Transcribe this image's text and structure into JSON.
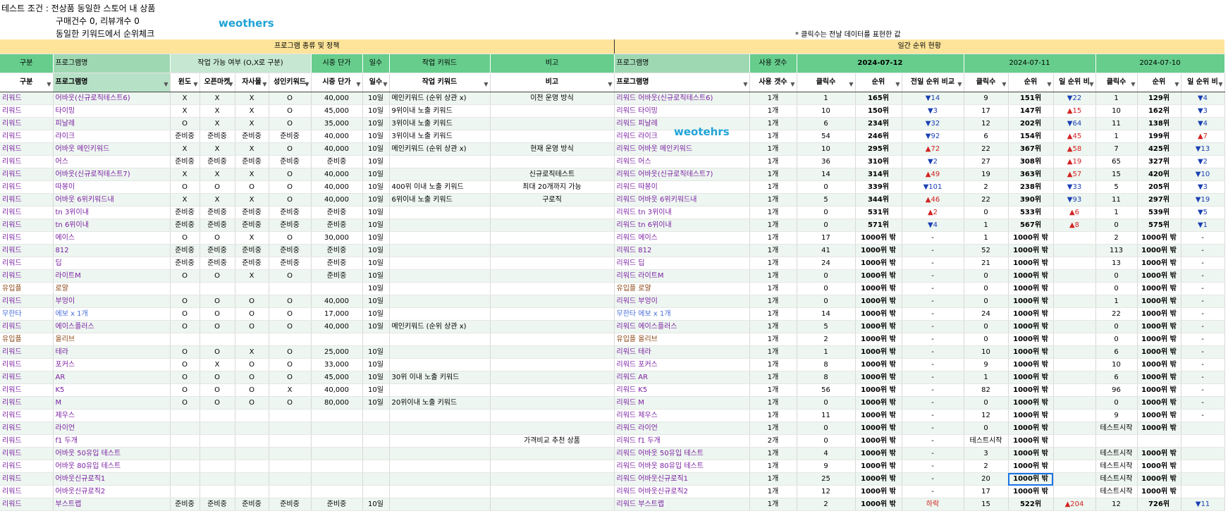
{
  "header": {
    "line1": "테스트 조건 : 전상품 동일한 스토어 내 상품",
    "line2": "구매건수 0, 리뷰개수 0",
    "line3": "동일한 키워드에서 순위체크",
    "note": "* 클릭수는 전날 데이터를 표현한 값",
    "watermark1": "weothers",
    "watermark2": "weotehrs"
  },
  "bands": {
    "left": "프로그램 종류 및 정책",
    "right": "일간 순위 현황"
  },
  "header_row1": [
    "구분",
    "프로그램명",
    "작업 가능 여부 (O,X로 구분)",
    "시중 단가",
    "일수",
    "작업 키워드",
    "비고",
    "프로그램명",
    "사용 갯수",
    "2024-07-12",
    "2024-07-11",
    "2024-07-10"
  ],
  "header_row2": [
    "구분",
    "프로그램명",
    "윈도",
    "오픈마켓",
    "자사몰",
    "성인키워드",
    "시중 단가",
    "일수",
    "작업 키워드",
    "비고",
    "프로그램명",
    "사용 갯수",
    "클릭수",
    "순위",
    "전일 순위 비교",
    "클릭수",
    "순위",
    "일 순위 비",
    "클릭수",
    "순위",
    "일 순위 비"
  ],
  "rows": [
    [
      "리워드",
      "어바웃(신규로직테스트6)",
      "X",
      "X",
      "X",
      "O",
      "40,000",
      "10일",
      "메인키워드 (순위 상관 x)",
      "이전 운영 방식",
      "리워드 어바웃(신규로직테스트6)",
      "1개",
      "1",
      "165위",
      "▼14",
      "9",
      "151위",
      "▼22",
      "1",
      "129위",
      "▼4"
    ],
    [
      "리워드",
      "타이밍",
      "X",
      "X",
      "X",
      "O",
      "45,000",
      "10일",
      "9위이내 노출 키워드",
      "",
      "리워드 타이밍",
      "1개",
      "10",
      "150위",
      "▼3",
      "17",
      "147위",
      "▲15",
      "10",
      "162위",
      "▼3"
    ],
    [
      "리워드",
      "피날레",
      "O",
      "X",
      "X",
      "O",
      "35,000",
      "10일",
      "3위이내 노출 키워드",
      "",
      "리워드 피날레",
      "1개",
      "6",
      "234위",
      "▼32",
      "12",
      "202위",
      "▼64",
      "11",
      "138위",
      "▼4"
    ],
    [
      "리워드",
      "라이크",
      "준비중",
      "준비중",
      "준비중",
      "준비중",
      "40,000",
      "10일",
      "3위이내 노출 키워드",
      "",
      "리워드 라이크",
      "1개",
      "54",
      "246위",
      "▼92",
      "6",
      "154위",
      "▲45",
      "1",
      "199위",
      "▲7"
    ],
    [
      "리워드",
      "어바웃 메인키워드",
      "X",
      "X",
      "X",
      "O",
      "40,000",
      "10일",
      "메인키워드 (순위 상관 x)",
      "현재 운영 방식",
      "리워드 어바웃 메인키워드",
      "1개",
      "10",
      "295위",
      "▲72",
      "22",
      "367위",
      "▲58",
      "7",
      "425위",
      "▼13"
    ],
    [
      "리워드",
      "어스",
      "준비중",
      "준비중",
      "준비중",
      "준비중",
      "준비중",
      "10일",
      "",
      "",
      "리워드 어스",
      "1개",
      "36",
      "310위",
      "▼2",
      "27",
      "308위",
      "▲19",
      "65",
      "327위",
      "▼2"
    ],
    [
      "리워드",
      "어바웃(신규로직테스트7)",
      "X",
      "X",
      "X",
      "O",
      "40,000",
      "10일",
      "",
      "신규로직테스트",
      "리워드 어바웃(신규로직테스트7)",
      "1개",
      "14",
      "314위",
      "▲49",
      "19",
      "363위",
      "▲57",
      "15",
      "420위",
      "▼10"
    ],
    [
      "리워드",
      "따봉이",
      "O",
      "O",
      "O",
      "O",
      "40,000",
      "10일",
      "400위 이내 노출 키워드",
      "최대 20개까지 가능",
      "리워드 따봉이",
      "1개",
      "0",
      "339위",
      "▼101",
      "2",
      "238위",
      "▼33",
      "5",
      "205위",
      "▼3"
    ],
    [
      "리워드",
      "어바웃 6위키워드내",
      "X",
      "X",
      "X",
      "O",
      "40,000",
      "10일",
      "6위이내 노출 키워드",
      "구로직",
      "리워드 어바웃 6위키워드내",
      "1개",
      "5",
      "344위",
      "▲46",
      "22",
      "390위",
      "▼93",
      "11",
      "297위",
      "▼19"
    ],
    [
      "리워드",
      "tn 3위이내",
      "준비중",
      "준비중",
      "준비중",
      "준비중",
      "준비중",
      "10일",
      "",
      "",
      "리워드 tn 3위이내",
      "1개",
      "0",
      "531위",
      "▲2",
      "0",
      "533위",
      "▲6",
      "1",
      "539위",
      "▼5"
    ],
    [
      "리워드",
      "tn 6위이내",
      "준비중",
      "준비중",
      "준비중",
      "준비중",
      "준비중",
      "10일",
      "",
      "",
      "리워드 tn 6위이내",
      "1개",
      "0",
      "571위",
      "▼4",
      "1",
      "567위",
      "▲8",
      "0",
      "575위",
      "▼1"
    ],
    [
      "리워드",
      "에이스",
      "O",
      "O",
      "X",
      "O",
      "30,000",
      "10일",
      "",
      "",
      "리워드 에이스",
      "1개",
      "17",
      "1000위 밖",
      "-",
      "1",
      "1000위 밖",
      "",
      "2",
      "1000위 밖",
      "-"
    ],
    [
      "리워드",
      "812",
      "준비중",
      "준비중",
      "준비중",
      "준비중",
      "준비중",
      "10일",
      "",
      "",
      "리워드 812",
      "1개",
      "41",
      "1000위 밖",
      "-",
      "52",
      "1000위 밖",
      "",
      "113",
      "1000위 밖",
      "-"
    ],
    [
      "리워드",
      "딥",
      "준비중",
      "준비중",
      "준비중",
      "준비중",
      "준비중",
      "10일",
      "",
      "",
      "리워드 딥",
      "1개",
      "24",
      "1000위 밖",
      "-",
      "21",
      "1000위 밖",
      "",
      "13",
      "1000위 밖",
      "-"
    ],
    [
      "리워드",
      "라이트M",
      "O",
      "O",
      "X",
      "O",
      "준비중",
      "10일",
      "",
      "",
      "리워드 라이트M",
      "1개",
      "0",
      "1000위 밖",
      "-",
      "0",
      "1000위 밖",
      "",
      "0",
      "1000위 밖",
      "-"
    ],
    [
      "유입플",
      "로얄",
      "",
      "",
      "",
      "",
      "",
      "10일",
      "",
      "",
      "유입플 로얄",
      "1개",
      "0",
      "1000위 밖",
      "-",
      "0",
      "1000위 밖",
      "",
      "0",
      "1000위 밖",
      "-"
    ],
    [
      "리워드",
      "부엉이",
      "O",
      "O",
      "O",
      "O",
      "40,000",
      "10일",
      "",
      "",
      "리워드 부엉이",
      "1개",
      "0",
      "1000위 밖",
      "-",
      "0",
      "1000위 밖",
      "",
      "1",
      "1000위 밖",
      "-"
    ],
    [
      "무한타",
      "에보 x 1개",
      "O",
      "O",
      "O",
      "O",
      "17,000",
      "10일",
      "",
      "",
      "무한타 에보 x 1개",
      "1개",
      "14",
      "1000위 밖",
      "-",
      "24",
      "1000위 밖",
      "",
      "22",
      "1000위 밖",
      "-"
    ],
    [
      "리워드",
      "에이스플러스",
      "O",
      "O",
      "O",
      "O",
      "40,000",
      "10일",
      "메인키워드 (순위 상관 x)",
      "",
      "리워드 에이스플러스",
      "1개",
      "5",
      "1000위 밖",
      "-",
      "0",
      "1000위 밖",
      "",
      "0",
      "1000위 밖",
      "-"
    ],
    [
      "유입플",
      "올리브",
      "",
      "",
      "",
      "",
      "",
      "",
      "",
      "",
      "유입플 올리브",
      "1개",
      "2",
      "1000위 밖",
      "-",
      "0",
      "1000위 밖",
      "",
      "0",
      "1000위 밖",
      "-"
    ],
    [
      "리워드",
      "테라",
      "O",
      "O",
      "X",
      "O",
      "25,000",
      "10일",
      "",
      "",
      "리워드 테라",
      "1개",
      "1",
      "1000위 밖",
      "-",
      "10",
      "1000위 밖",
      "",
      "6",
      "1000위 밖",
      "-"
    ],
    [
      "리워드",
      "포커스",
      "O",
      "X",
      "O",
      "O",
      "33,000",
      "10일",
      "",
      "",
      "리워드 포커스",
      "1개",
      "8",
      "1000위 밖",
      "-",
      "9",
      "1000위 밖",
      "",
      "10",
      "1000위 밖",
      "-"
    ],
    [
      "리워드",
      "AR",
      "O",
      "O",
      "O",
      "O",
      "45,000",
      "10일",
      "30위 이내 노출 키워드",
      "",
      "리워드 AR",
      "1개",
      "8",
      "1000위 밖",
      "-",
      "1",
      "1000위 밖",
      "",
      "6",
      "1000위 밖",
      "-"
    ],
    [
      "리워드",
      "K5",
      "O",
      "O",
      "O",
      "X",
      "40,000",
      "10일",
      "",
      "",
      "리워드 K5",
      "1개",
      "56",
      "1000위 밖",
      "-",
      "82",
      "1000위 밖",
      "",
      "96",
      "1000위 밖",
      "-"
    ],
    [
      "리워드",
      "M",
      "O",
      "O",
      "O",
      "O",
      "80,000",
      "10일",
      "20위이내 노출 키워드",
      "",
      "리워드 M",
      "1개",
      "0",
      "1000위 밖",
      "-",
      "0",
      "1000위 밖",
      "",
      "0",
      "1000위 밖",
      "-"
    ],
    [
      "리워드",
      "제우스",
      "",
      "",
      "",
      "",
      "",
      "",
      "",
      "",
      "리워드 제우스",
      "1개",
      "11",
      "1000위 밖",
      "-",
      "12",
      "1000위 밖",
      "",
      "9",
      "1000위 밖",
      "-"
    ],
    [
      "리워드",
      "라이언",
      "",
      "",
      "",
      "",
      "",
      "",
      "",
      "",
      "리워드 라이언",
      "1개",
      "0",
      "1000위 밖",
      "-",
      "0",
      "1000위 밖",
      "",
      "테스트시작",
      "1000위 밖",
      ""
    ],
    [
      "리워드",
      "f1 두개",
      "",
      "",
      "",
      "",
      "",
      "",
      "",
      "가격비교 추천 상품",
      "리워드 f1 두개",
      "2개",
      "0",
      "1000위 밖",
      "-",
      "테스트시작",
      "1000위 밖",
      "",
      "",
      "",
      ""
    ],
    [
      "리워드",
      "어바웃 50유입 테스트",
      "",
      "",
      "",
      "",
      "",
      "",
      "",
      "",
      "리워드 어바웃 50유입 테스트",
      "1개",
      "4",
      "1000위 밖",
      "-",
      "3",
      "1000위 밖",
      "",
      "테스트시작",
      "1000위 밖",
      ""
    ],
    [
      "리워드",
      "어바웃 80유입 테스트",
      "",
      "",
      "",
      "",
      "",
      "",
      "",
      "",
      "리워드 어바웃 80유입 테스트",
      "1개",
      "9",
      "1000위 밖",
      "-",
      "2",
      "1000위 밖",
      "",
      "테스트시작",
      "1000위 밖",
      ""
    ],
    [
      "리워드",
      "어바웃신규로직1",
      "",
      "",
      "",
      "",
      "",
      "",
      "",
      "",
      "리워드 어바웃신규로직1",
      "1개",
      "25",
      "1000위 밖",
      "-",
      "20",
      "1000위 밖",
      "",
      "테스트시작",
      "1000위 밖",
      ""
    ],
    [
      "리워드",
      "어바웃신규로직2",
      "",
      "",
      "",
      "",
      "",
      "",
      "",
      "",
      "리워드 어바웃신규로직2",
      "1개",
      "12",
      "1000위 밖",
      "-",
      "17",
      "1000위 밖",
      "",
      "테스트시작",
      "1000위 밖",
      ""
    ],
    [
      "리워드",
      "부스트랩",
      "준비중",
      "준비중",
      "준비중",
      "준비중",
      "준비중",
      "10일",
      "",
      "",
      "리워드 부스트랩",
      "1개",
      "2",
      "1000위 밖",
      "하락",
      "15",
      "522위",
      "▲204",
      "12",
      "726위",
      "▼11"
    ]
  ],
  "colors": {
    "band": "#fde49a",
    "header_green": "#66cd8c",
    "row_stripe": "#edf6f0",
    "down": "#1a3fb3",
    "up": "#d22222",
    "program_name": "#7b1fa2"
  }
}
